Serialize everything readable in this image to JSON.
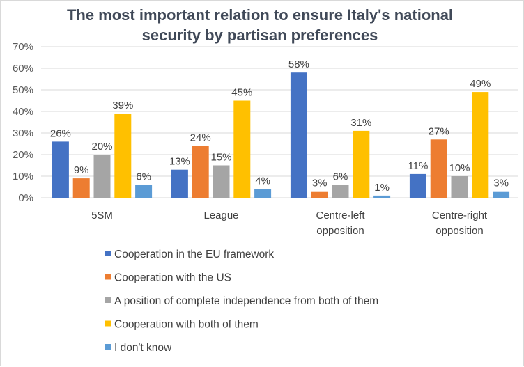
{
  "chart_data": {
    "type": "bar",
    "title": "The most important relation to ensure Italy's national security by partisan preferences",
    "title_lines": [
      "The most important relation to ensure Italy's national",
      "security by partisan preferences"
    ],
    "xlabel": "",
    "ylabel": "",
    "ylim": [
      0,
      70
    ],
    "y_ticks": [
      "0%",
      "10%",
      "20%",
      "30%",
      "40%",
      "50%",
      "60%",
      "70%"
    ],
    "grid": true,
    "legend_position": "bottom",
    "categories": [
      "5SM",
      "League",
      "Centre-left opposition",
      "Centre-right opposition"
    ],
    "category_lines": [
      [
        "5SM"
      ],
      [
        "League"
      ],
      [
        "Centre-left",
        "opposition"
      ],
      [
        "Centre-right",
        "opposition"
      ]
    ],
    "series": [
      {
        "name": "Cooperation in the EU framework",
        "color": "#4472C4",
        "values": [
          26,
          13,
          58,
          11
        ]
      },
      {
        "name": "Cooperation with the US",
        "color": "#ED7D31",
        "values": [
          9,
          24,
          3,
          27
        ]
      },
      {
        "name": "A position of complete independence from both of them",
        "color": "#A5A5A5",
        "values": [
          20,
          15,
          6,
          10
        ]
      },
      {
        "name": "Cooperation with both of them",
        "color": "#FFC000",
        "values": [
          39,
          45,
          31,
          49
        ]
      },
      {
        "name": "I don't know",
        "color": "#5B9BD5",
        "values": [
          6,
          4,
          1,
          3
        ]
      }
    ]
  }
}
